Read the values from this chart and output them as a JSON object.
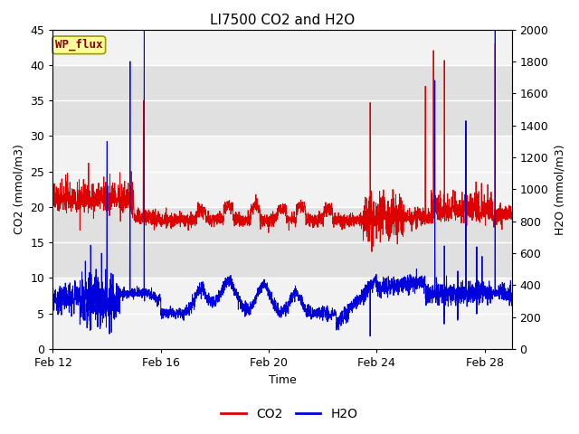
{
  "title": "LI7500 CO2 and H2O",
  "xlabel": "Time",
  "ylabel_left": "CO2 (mmol/m3)",
  "ylabel_right": "H2O (mmol/m3)",
  "ylim_left": [
    0,
    45
  ],
  "ylim_right": [
    0,
    2000
  ],
  "yticks_left": [
    0,
    5,
    10,
    15,
    20,
    25,
    30,
    35,
    40,
    45
  ],
  "yticks_right": [
    0,
    200,
    400,
    600,
    800,
    1000,
    1200,
    1400,
    1600,
    1800,
    2000
  ],
  "xtick_positions": [
    0,
    4,
    8,
    12,
    16
  ],
  "xtick_labels": [
    "Feb 12",
    "Feb 16",
    "Feb 20",
    "Feb 24",
    "Feb 28"
  ],
  "xlim": [
    0,
    17
  ],
  "co2_color": "#dd0000",
  "h2o_color": "#0000dd",
  "background_color": "#ffffff",
  "plot_bg_light": "#f2f2f2",
  "plot_bg_dark": "#e0e0e0",
  "grid_color": "#ffffff",
  "legend_label_co2": "CO2",
  "legend_label_h2o": "H2O",
  "annotation_text": "WP_flux",
  "annotation_color": "#8b0000",
  "annotation_bg": "#ffff99",
  "annotation_edge": "#999900",
  "title_fontsize": 11,
  "axis_fontsize": 9,
  "tick_fontsize": 9,
  "legend_fontsize": 10,
  "linewidth": 0.7,
  "band_edges_left": [
    0,
    10,
    20,
    30,
    40
  ],
  "band_edges_right": [
    10,
    20,
    30,
    40,
    45
  ]
}
